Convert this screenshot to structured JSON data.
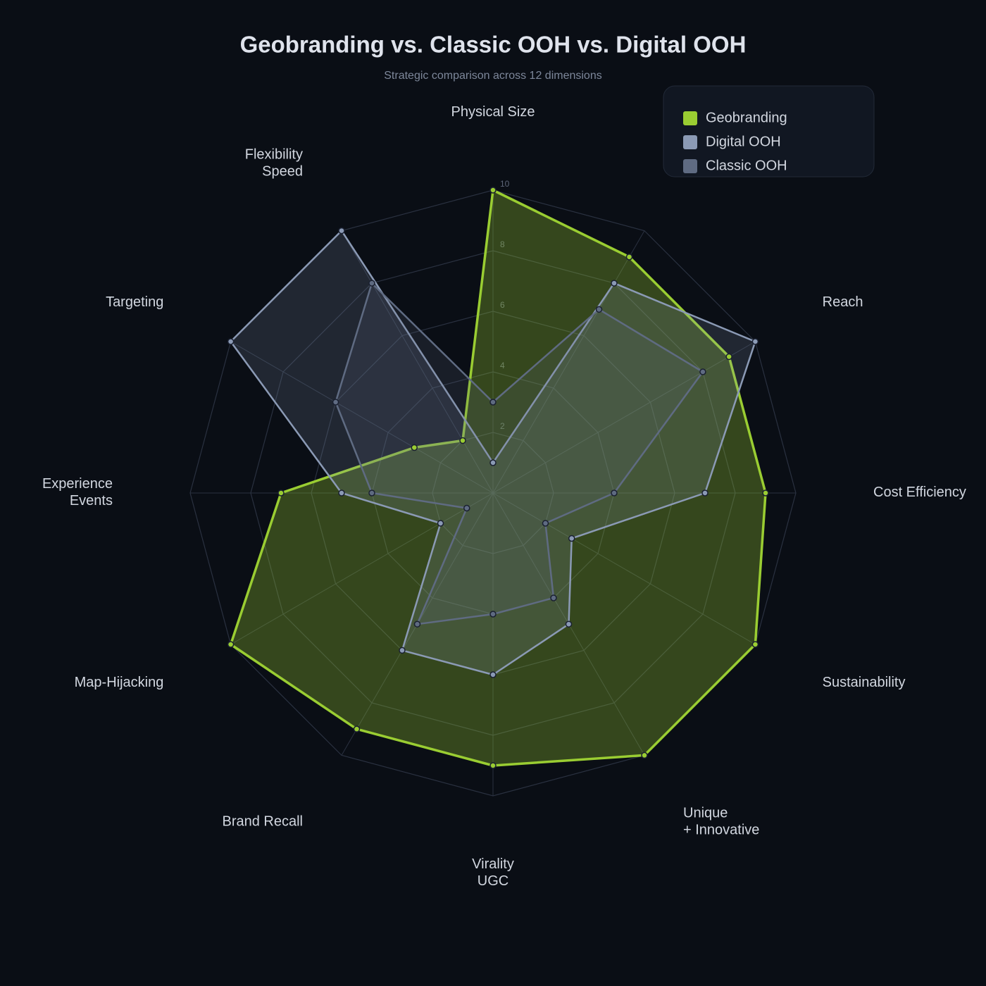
{
  "chart_data": {
    "type": "radar",
    "title": "Geobranding vs. Classic OOH vs. Digital OOH",
    "subtitle": "Strategic comparison across 12 dimensions",
    "categories": [
      [
        "Physical Size"
      ],
      null,
      [
        "Reach"
      ],
      [
        "Cost Efficiency"
      ],
      [
        "Sustainability"
      ],
      [
        "Unique",
        "+ Innovative"
      ],
      [
        "Virality",
        "UGC"
      ],
      [
        "Brand Recall"
      ],
      [
        "Map-Hijacking"
      ],
      [
        "Experience",
        "Events"
      ],
      [
        "Targeting"
      ],
      [
        "Flexibility",
        "Speed"
      ]
    ],
    "series": [
      {
        "name": "Geobranding",
        "color": "#9acd32",
        "values": [
          10,
          9,
          9,
          9,
          10,
          10,
          9,
          9,
          10,
          7,
          3,
          2
        ]
      },
      {
        "name": "Digital OOH",
        "color": "#8b9ab5",
        "values": [
          1,
          8,
          10,
          7,
          3,
          5,
          6,
          6,
          2,
          5,
          10,
          10
        ]
      },
      {
        "name": "Classic OOH",
        "color": "#5f6b82",
        "values": [
          3,
          7,
          8,
          4,
          2,
          4,
          4,
          5,
          1,
          4,
          6,
          8
        ]
      }
    ],
    "rlim": [
      0,
      10
    ],
    "rticks": [
      2,
      4,
      6,
      8,
      10
    ],
    "grid": true,
    "legend": "top-right"
  }
}
